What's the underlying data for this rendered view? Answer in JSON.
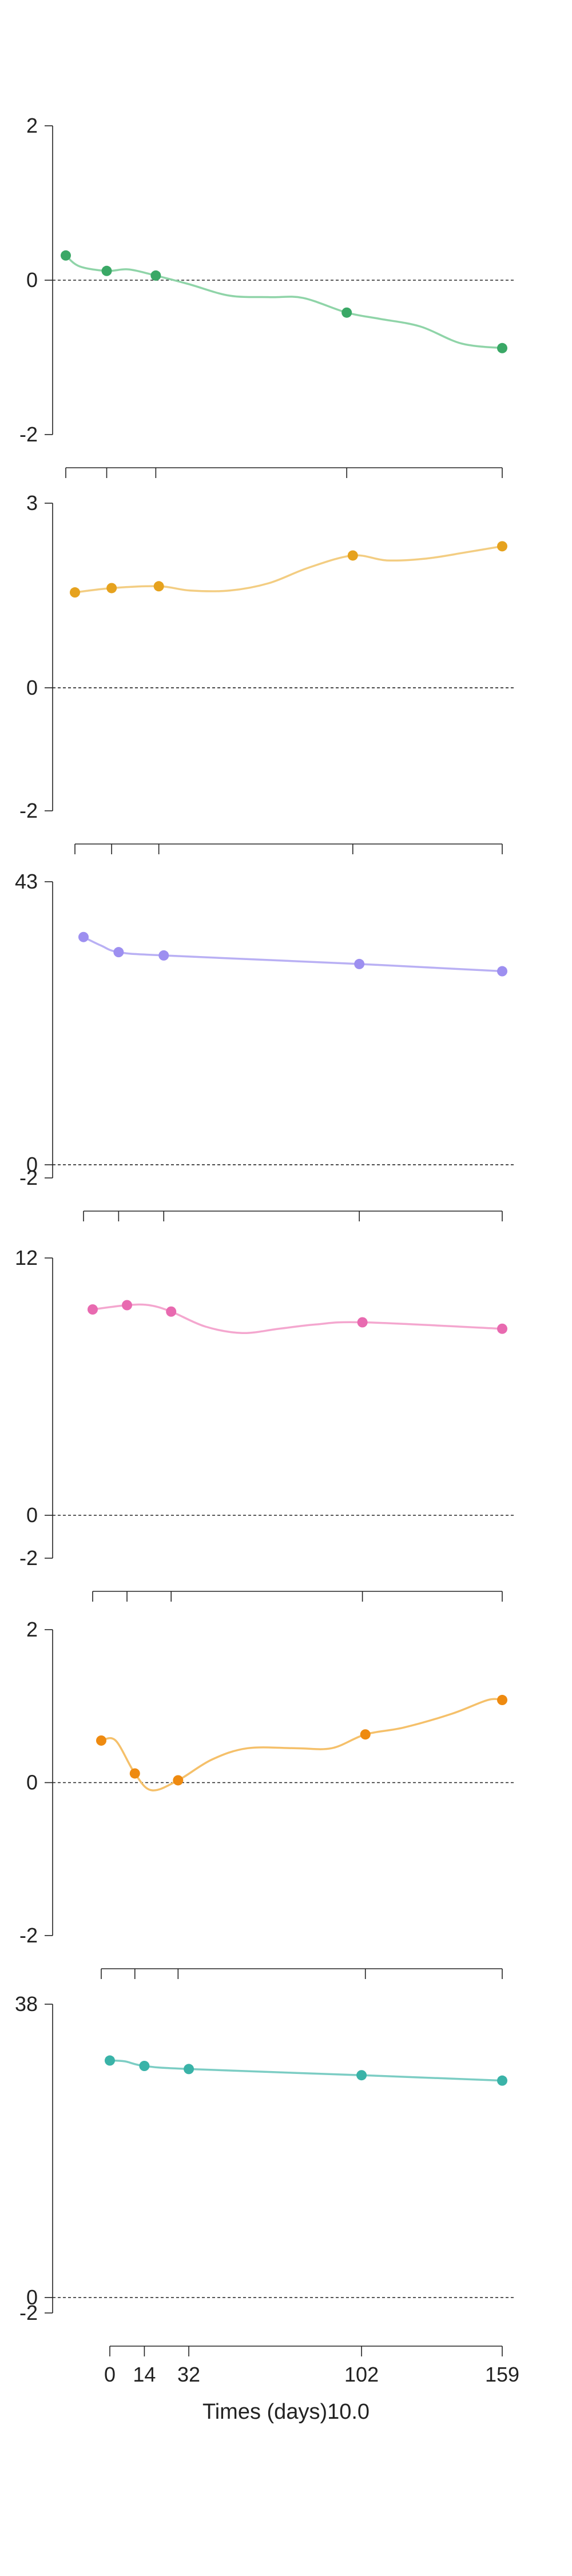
{
  "figure": {
    "xlabel": "Times (days)10.0",
    "x_ticks": [
      0,
      14,
      32,
      102,
      159
    ],
    "x_tick_labels": [
      "0",
      "14",
      "32",
      "102",
      "159"
    ]
  },
  "chart_data": [
    {
      "type": "line",
      "color": "#3aa866",
      "curve_color": "#8fd4a8",
      "y_ticks": [
        2,
        0,
        -2
      ],
      "y_tick_labels": [
        "2",
        "0",
        "-2"
      ],
      "ylim": [
        -2,
        2
      ],
      "baseline": 0,
      "x": [
        -15,
        0,
        18,
        88,
        145
      ],
      "y": [
        0.32,
        0.12,
        0.06,
        -0.42,
        -0.88
      ],
      "curve": [
        [
          -15,
          0.32
        ],
        [
          -10,
          0.18
        ],
        [
          0,
          0.12
        ],
        [
          8,
          0.14
        ],
        [
          18,
          0.06
        ],
        [
          30,
          -0.05
        ],
        [
          45,
          -0.2
        ],
        [
          60,
          -0.22
        ],
        [
          72,
          -0.23
        ],
        [
          88,
          -0.42
        ],
        [
          100,
          -0.5
        ],
        [
          115,
          -0.6
        ],
        [
          130,
          -0.82
        ],
        [
          145,
          -0.88
        ]
      ]
    },
    {
      "type": "line",
      "color": "#e6a21e",
      "curve_color": "#f3cd82",
      "y_ticks": [
        3,
        0,
        -2
      ],
      "y_tick_labels": [
        "3",
        "0",
        "-2"
      ],
      "ylim": [
        -2,
        3
      ],
      "baseline": 0,
      "x": [
        -14,
        0,
        18,
        92,
        149
      ],
      "y": [
        1.55,
        1.62,
        1.65,
        2.15,
        2.3
      ],
      "curve": [
        [
          -14,
          1.55
        ],
        [
          0,
          1.62
        ],
        [
          18,
          1.65
        ],
        [
          30,
          1.58
        ],
        [
          45,
          1.58
        ],
        [
          60,
          1.7
        ],
        [
          75,
          1.95
        ],
        [
          92,
          2.15
        ],
        [
          105,
          2.07
        ],
        [
          120,
          2.1
        ],
        [
          135,
          2.2
        ],
        [
          149,
          2.3
        ]
      ]
    },
    {
      "type": "line",
      "color": "#9d8ff0",
      "curve_color": "#b9b0f4",
      "y_ticks": [
        43,
        0,
        -2
      ],
      "y_tick_labels": [
        "43",
        "0",
        "-2"
      ],
      "ylim": [
        -2,
        43
      ],
      "baseline": 0,
      "x": [
        -11,
        3,
        21,
        99,
        156
      ],
      "y": [
        34.6,
        32.3,
        31.8,
        30.5,
        29.4
      ],
      "curve": [
        [
          -11,
          34.6
        ],
        [
          -4,
          33.3
        ],
        [
          3,
          32.3
        ],
        [
          21,
          31.8
        ],
        [
          99,
          30.5
        ],
        [
          156,
          29.4
        ]
      ]
    },
    {
      "type": "line",
      "color": "#e86ab0",
      "curve_color": "#f4a7cf",
      "y_ticks": [
        12,
        0,
        -2
      ],
      "y_tick_labels": [
        "12",
        "0",
        "-2"
      ],
      "ylim": [
        -2,
        12
      ],
      "baseline": 0,
      "x": [
        -11,
        3,
        21,
        99,
        156
      ],
      "y": [
        9.6,
        9.8,
        9.5,
        9.0,
        8.7
      ],
      "curve": [
        [
          -11,
          9.6
        ],
        [
          3,
          9.8
        ],
        [
          12,
          9.8
        ],
        [
          21,
          9.5
        ],
        [
          35,
          8.8
        ],
        [
          50,
          8.5
        ],
        [
          65,
          8.7
        ],
        [
          80,
          8.9
        ],
        [
          99,
          9.0
        ],
        [
          156,
          8.7
        ]
      ]
    },
    {
      "type": "line",
      "color": "#ee8a10",
      "curve_color": "#f5c06a",
      "y_ticks": [
        2,
        0,
        -2
      ],
      "y_tick_labels": [
        "2",
        "0",
        "-2"
      ],
      "ylim": [
        -2,
        2
      ],
      "baseline": 0,
      "x": [
        -11,
        3,
        21,
        99,
        156
      ],
      "y": [
        0.55,
        0.12,
        0.03,
        0.63,
        1.08
      ],
      "curve": [
        [
          -11,
          0.55
        ],
        [
          -5,
          0.55
        ],
        [
          3,
          0.12
        ],
        [
          10,
          -0.1
        ],
        [
          21,
          0.03
        ],
        [
          35,
          0.3
        ],
        [
          50,
          0.45
        ],
        [
          70,
          0.45
        ],
        [
          85,
          0.45
        ],
        [
          99,
          0.63
        ],
        [
          115,
          0.72
        ],
        [
          135,
          0.9
        ],
        [
          150,
          1.08
        ],
        [
          156,
          1.08
        ]
      ]
    },
    {
      "type": "line",
      "color": "#3ab3a8",
      "curve_color": "#7ccdc4",
      "y_ticks": [
        38,
        0,
        -2
      ],
      "y_tick_labels": [
        "38",
        "0",
        "-2"
      ],
      "ylim": [
        -2,
        38
      ],
      "baseline": 0,
      "x": [
        0,
        14,
        32,
        102,
        159
      ],
      "y": [
        30.7,
        30.0,
        29.6,
        28.8,
        28.1
      ],
      "curve": [
        [
          0,
          30.7
        ],
        [
          6,
          30.6
        ],
        [
          14,
          30.0
        ],
        [
          32,
          29.6
        ],
        [
          102,
          28.8
        ],
        [
          159,
          28.1
        ]
      ]
    }
  ]
}
